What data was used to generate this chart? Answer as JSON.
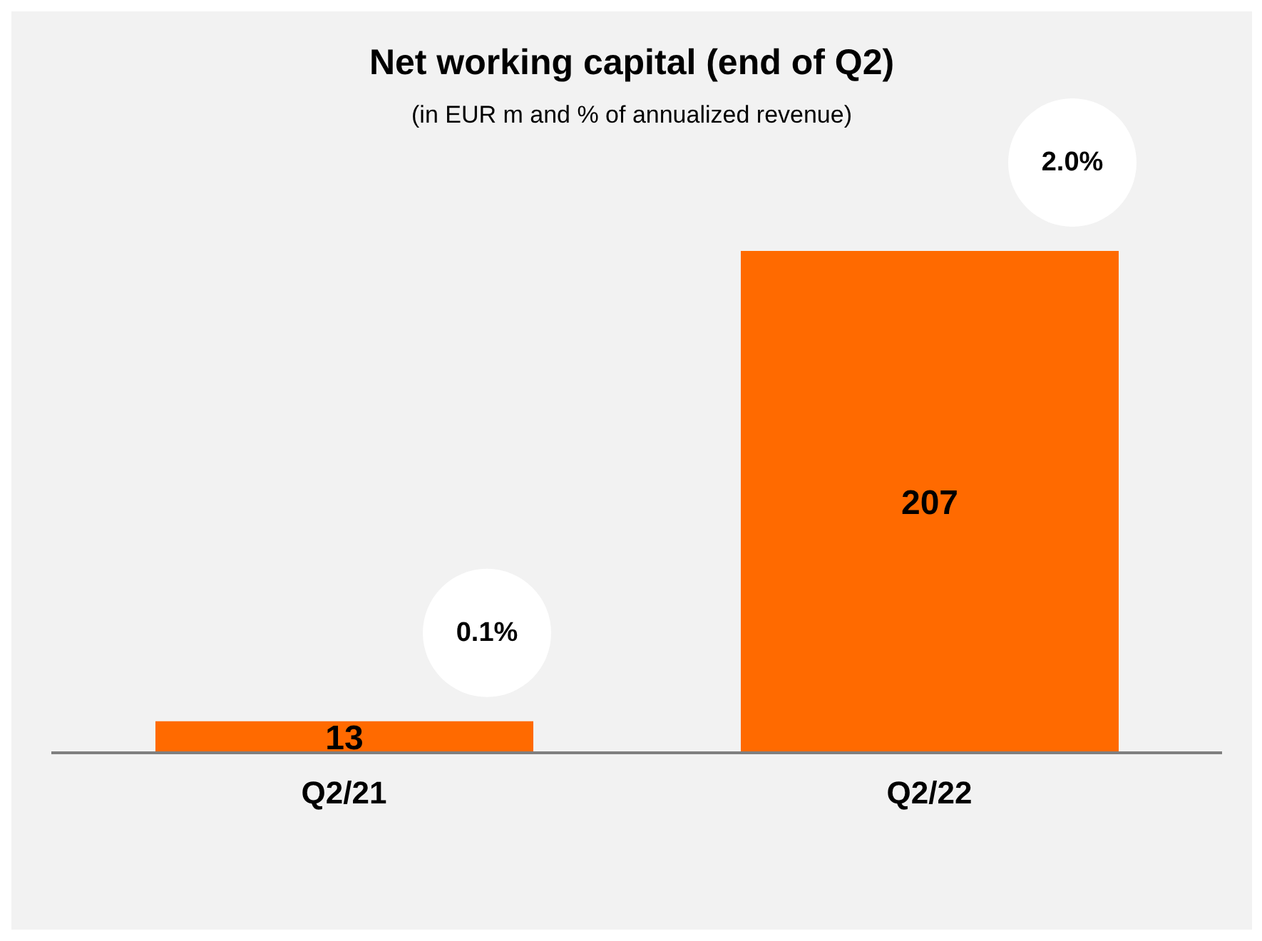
{
  "chart_data": {
    "type": "bar",
    "title": "Net working capital (end of Q2)",
    "subtitle": "(in EUR m and % of annualized revenue)",
    "categories": [
      "Q2/21",
      "Q2/22"
    ],
    "values": [
      13,
      207
    ],
    "color": "#ff6a00",
    "data_labels": true,
    "annotations": [
      "0.1%",
      "2.0%"
    ]
  }
}
